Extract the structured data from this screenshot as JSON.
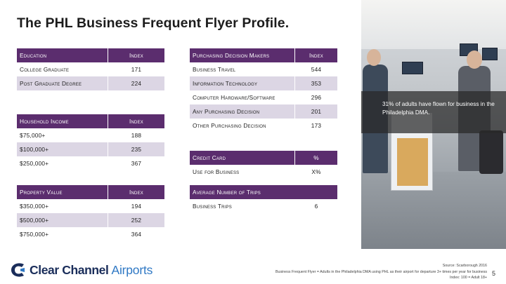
{
  "title": "The PHL Business Frequent Flyer Profile.",
  "education": {
    "header": {
      "label": "Education",
      "value": "Index"
    },
    "rows": [
      {
        "label": "College Graduate",
        "value": "171"
      },
      {
        "label": "Post Graduate Degree",
        "value": "224"
      }
    ]
  },
  "household_income": {
    "header": {
      "label": "Household Income",
      "value": "Index"
    },
    "rows": [
      {
        "label": "$75,000+",
        "value": "188"
      },
      {
        "label": "$100,000+",
        "value": "235"
      },
      {
        "label": "$250,000+",
        "value": "367"
      }
    ]
  },
  "property_value": {
    "header": {
      "label": "Property Value",
      "value": "Index"
    },
    "rows": [
      {
        "label": "$350,000+",
        "value": "194"
      },
      {
        "label": "$500,000+",
        "value": "252"
      },
      {
        "label": "$750,000+",
        "value": "364"
      }
    ]
  },
  "purchasing": {
    "header": {
      "label": "Purchasing Decision Makers",
      "value": "Index"
    },
    "rows": [
      {
        "label": "Business Travel",
        "value": "544"
      },
      {
        "label": "Information Technology",
        "value": "353"
      },
      {
        "label": "Computer Hardware/Software",
        "value": "296"
      },
      {
        "label": "Any Purchasing Decision",
        "value": "201"
      },
      {
        "label": "Other Purchasing Decision",
        "value": "173"
      }
    ]
  },
  "credit_card": {
    "header": {
      "label": "Credit Card",
      "value": "%"
    },
    "rows": [
      {
        "label": "Use for Business",
        "value": "X%"
      }
    ]
  },
  "trips": {
    "header": {
      "label": "Average Number of Trips",
      "value": ""
    },
    "rows": [
      {
        "label": "Business Trips",
        "value": "6"
      }
    ]
  },
  "photo_caption": "31% of adults have flown for business in the Philadelphia DMA.",
  "footnote": {
    "source": "Source: Scarborough 2016",
    "definition": "Business Frequent Flyer = Adults in the Philadelphia DMA using PHL as their airport for departure 3+ times per year for business",
    "index_base": "Index: 100 = Adult 18+"
  },
  "logo": {
    "bold": "Clear Channel",
    "light": "Airports"
  },
  "page_number": "5",
  "colors": {
    "header": "#5b2d6e",
    "shade": "#dcd6e4",
    "logo_dark": "#1a2d5a",
    "logo_blue": "#2f78c4"
  }
}
